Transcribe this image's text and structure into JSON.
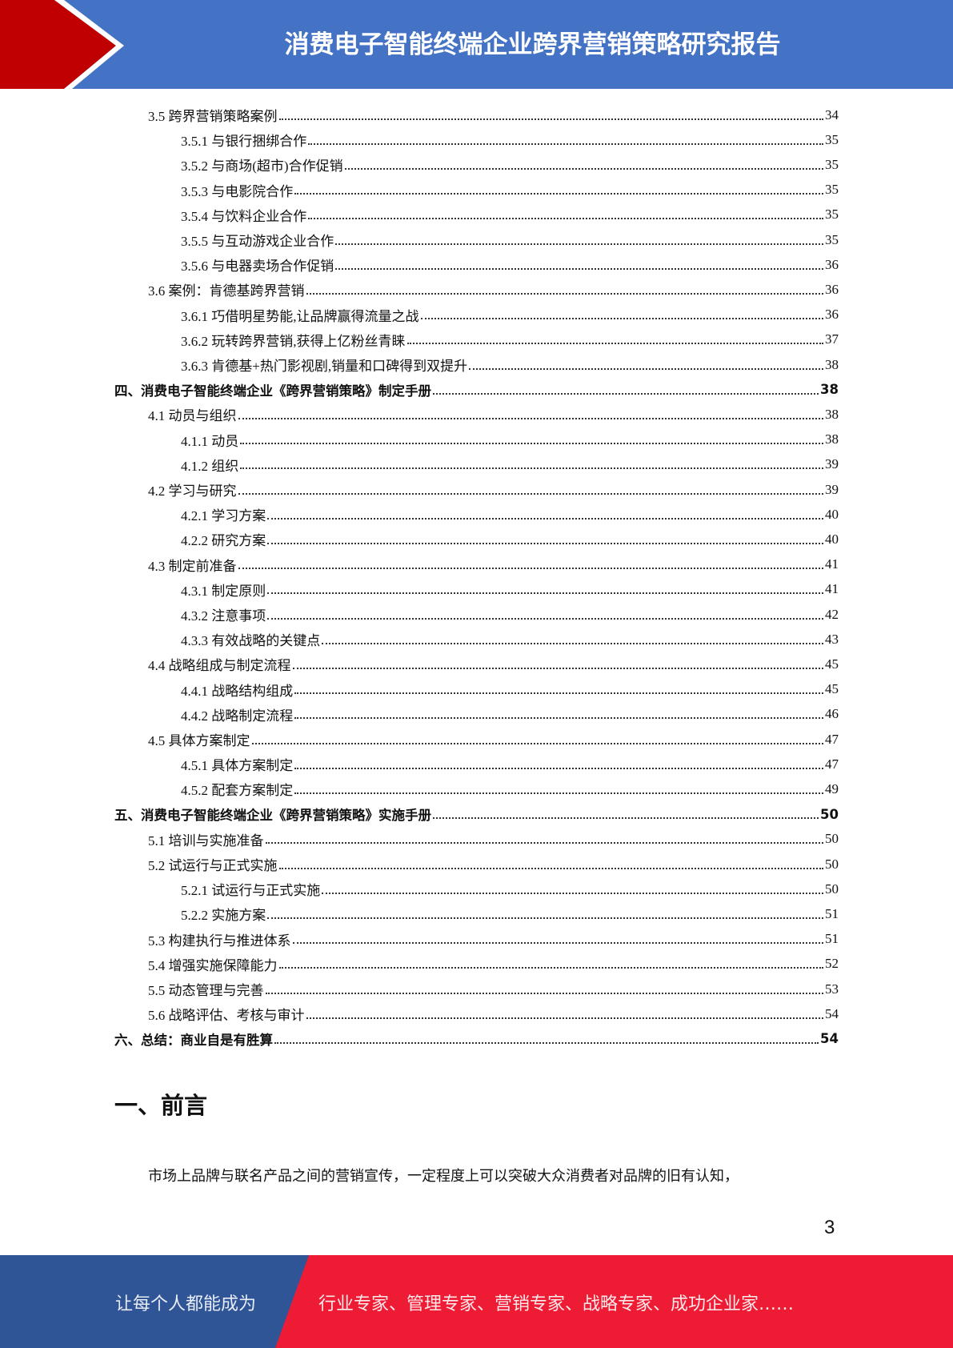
{
  "header": {
    "title": "消费电子智能终端企业跨界营销策略研究报告",
    "colors": {
      "blue": "#4472c4",
      "red": "#c00000"
    }
  },
  "toc": [
    {
      "level": 1,
      "label": "3.5  跨界营销策略案例",
      "page": "34"
    },
    {
      "level": 2,
      "label": "3.5.1  与银行捆绑合作",
      "page": "35"
    },
    {
      "level": 2,
      "label": "3.5.2  与商场(超市)合作促销",
      "page": "35"
    },
    {
      "level": 2,
      "label": "3.5.3  与电影院合作",
      "page": "35"
    },
    {
      "level": 2,
      "label": "3.5.4  与饮料企业合作",
      "page": "35"
    },
    {
      "level": 2,
      "label": "3.5.5  与互动游戏企业合作",
      "page": "35"
    },
    {
      "level": 2,
      "label": "3.5.6  与电器卖场合作促销",
      "page": "36"
    },
    {
      "level": 1,
      "label": "3.6  案例：肯德基跨界营销",
      "page": "36"
    },
    {
      "level": 2,
      "label": "3.6.1  巧借明星势能,让品牌赢得流量之战",
      "page": "36"
    },
    {
      "level": 2,
      "label": "3.6.2  玩转跨界营销,获得上亿粉丝青睐",
      "page": "37"
    },
    {
      "level": 2,
      "label": "3.6.3  肯德基+热门影视剧,销量和口碑得到双提升",
      "page": "38"
    },
    {
      "level": 0,
      "label": "四、消费电子智能终端企业《跨界营销策略》制定手册",
      "page": "38"
    },
    {
      "level": 1,
      "label": "4.1  动员与组织",
      "page": "38"
    },
    {
      "level": 2,
      "label": "4.1.1  动员",
      "page": "38"
    },
    {
      "level": 2,
      "label": "4.1.2  组织",
      "page": "39"
    },
    {
      "level": 1,
      "label": "4.2  学习与研究",
      "page": "39"
    },
    {
      "level": 2,
      "label": "4.2.1  学习方案",
      "page": "40"
    },
    {
      "level": 2,
      "label": "4.2.2  研究方案",
      "page": "40"
    },
    {
      "level": 1,
      "label": "4.3  制定前准备",
      "page": "41"
    },
    {
      "level": 2,
      "label": "4.3.1  制定原则",
      "page": "41"
    },
    {
      "level": 2,
      "label": "4.3.2  注意事项",
      "page": "42"
    },
    {
      "level": 2,
      "label": "4.3.3  有效战略的关键点",
      "page": "43"
    },
    {
      "level": 1,
      "label": "4.4  战略组成与制定流程",
      "page": "45"
    },
    {
      "level": 2,
      "label": "4.4.1  战略结构组成",
      "page": "45"
    },
    {
      "level": 2,
      "label": "4.4.2  战略制定流程",
      "page": "46"
    },
    {
      "level": 1,
      "label": "4.5  具体方案制定",
      "page": "47"
    },
    {
      "level": 2,
      "label": "4.5.1  具体方案制定",
      "page": "47"
    },
    {
      "level": 2,
      "label": "4.5.2  配套方案制定",
      "page": "49"
    },
    {
      "level": 0,
      "label": "五、消费电子智能终端企业《跨界营销策略》实施手册",
      "page": "50"
    },
    {
      "level": 1,
      "label": "5.1  培训与实施准备",
      "page": "50"
    },
    {
      "level": 1,
      "label": "5.2  试运行与正式实施",
      "page": "50"
    },
    {
      "level": 2,
      "label": "5.2.1 试运行与正式实施",
      "page": "50"
    },
    {
      "level": 2,
      "label": "5.2.2  实施方案",
      "page": "51"
    },
    {
      "level": 1,
      "label": "5.3  构建执行与推进体系",
      "page": "51"
    },
    {
      "level": 1,
      "label": "5.4  增强实施保障能力",
      "page": "52"
    },
    {
      "level": 1,
      "label": "5.5  动态管理与完善",
      "page": "53"
    },
    {
      "level": 1,
      "label": "5.6  战略评估、考核与审计",
      "page": "54"
    },
    {
      "level": 0,
      "label": "六、总结：商业自是有胜算",
      "page": "54"
    }
  ],
  "section": {
    "heading": "一、前言",
    "paragraph": "市场上品牌与联名产品之间的营销宣传，一定程度上可以突破大众消费者对品牌的旧有认知，"
  },
  "page_number": "3",
  "footer": {
    "left_text": "让每个人都能成为",
    "right_text": "行业专家、管理专家、营销专家、战略专家、成功企业家……",
    "colors": {
      "blue": "#2f5597",
      "red": "#ee1b35"
    }
  }
}
